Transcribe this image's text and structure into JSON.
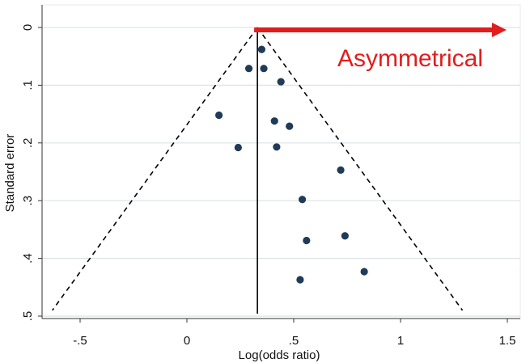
{
  "chart_data": {
    "type": "scatter",
    "xlabel": "Log(odds ratio)",
    "ylabel": "Standard error",
    "xlim": [
      -0.65,
      1.55
    ],
    "ylim": [
      0,
      0.5
    ],
    "y_reversed": true,
    "x_ticks": [
      -0.5,
      0,
      0.5,
      1,
      1.5
    ],
    "x_tick_labels": [
      "-.5",
      "0",
      ".5",
      "1",
      "1.5"
    ],
    "y_ticks": [
      0,
      0.1,
      0.2,
      0.3,
      0.4,
      0.5
    ],
    "y_tick_labels": [
      "0",
      ".1",
      ".2",
      ".3",
      ".4",
      ".5"
    ],
    "grid": "horizontal",
    "pooled_estimate": 0.33,
    "funnel_limits": {
      "apex": [
        0.33,
        0
      ],
      "left_base": [
        -0.63,
        0.49
      ],
      "right_base": [
        1.29,
        0.49
      ]
    },
    "points": [
      {
        "x": 0.35,
        "y": 0.038
      },
      {
        "x": 0.29,
        "y": 0.071
      },
      {
        "x": 0.36,
        "y": 0.071
      },
      {
        "x": 0.44,
        "y": 0.094
      },
      {
        "x": 0.15,
        "y": 0.152
      },
      {
        "x": 0.41,
        "y": 0.162
      },
      {
        "x": 0.48,
        "y": 0.171
      },
      {
        "x": 0.24,
        "y": 0.208
      },
      {
        "x": 0.42,
        "y": 0.207
      },
      {
        "x": 0.72,
        "y": 0.247
      },
      {
        "x": 0.54,
        "y": 0.298
      },
      {
        "x": 0.74,
        "y": 0.361
      },
      {
        "x": 0.56,
        "y": 0.369
      },
      {
        "x": 0.83,
        "y": 0.423
      },
      {
        "x": 0.53,
        "y": 0.437
      }
    ],
    "annotation": {
      "text": "Asymmetrical",
      "arrow_from_x": 0.33,
      "arrow_to_x": 1.5,
      "arrow_y": 0
    },
    "colors": {
      "point": "#1f3b57",
      "funnel": "#000000",
      "annotation": "#e11d1d",
      "grid": "#dde3e8"
    }
  }
}
